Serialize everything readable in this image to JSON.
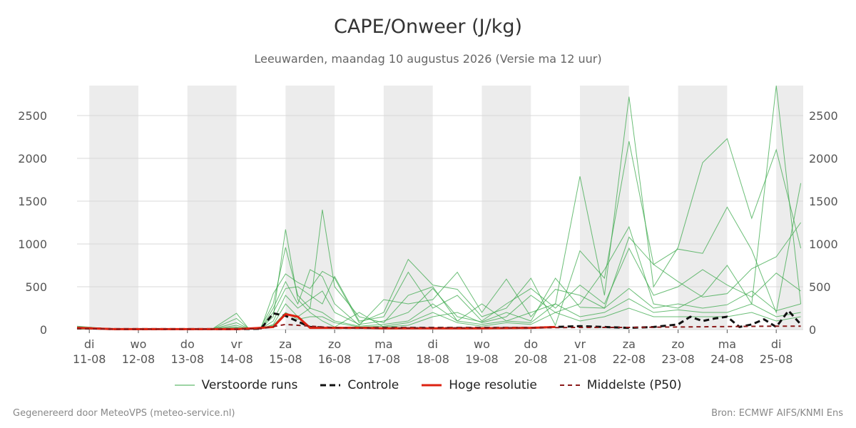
{
  "chart_data": {
    "type": "line",
    "title": "CAPE/Onweer (J/kg)",
    "subtitle": "Leeuwarden, maandag 10 augustus 2026 (Versie ma 12 uur)",
    "ylim": [
      0,
      2850
    ],
    "yticks": [
      0,
      500,
      1000,
      1500,
      2000,
      2500
    ],
    "xlim": [
      -0.25,
      14.55
    ],
    "x_ticks": [
      {
        "x": 0,
        "day": "di",
        "date": "11-08"
      },
      {
        "x": 1,
        "day": "wo",
        "date": "12-08"
      },
      {
        "x": 2,
        "day": "do",
        "date": "13-08"
      },
      {
        "x": 3,
        "day": "vr",
        "date": "14-08"
      },
      {
        "x": 4,
        "day": "za",
        "date": "15-08"
      },
      {
        "x": 5,
        "day": "zo",
        "date": "16-08"
      },
      {
        "x": 6,
        "day": "ma",
        "date": "17-08"
      },
      {
        "x": 7,
        "day": "di",
        "date": "18-08"
      },
      {
        "x": 8,
        "day": "wo",
        "date": "19-08"
      },
      {
        "x": 9,
        "day": "do",
        "date": "20-08"
      },
      {
        "x": 10,
        "day": "vr",
        "date": "21-08"
      },
      {
        "x": 11,
        "day": "za",
        "date": "22-08"
      },
      {
        "x": 12,
        "day": "zo",
        "date": "23-08"
      },
      {
        "x": 13,
        "day": "ma",
        "date": "24-08"
      },
      {
        "x": 14,
        "day": "di",
        "date": "25-08"
      }
    ],
    "weekend_bands": [
      [
        0,
        1
      ],
      [
        2,
        3
      ],
      [
        4,
        5
      ],
      [
        6,
        7
      ],
      [
        8,
        9
      ],
      [
        10,
        11
      ],
      [
        12,
        13
      ],
      [
        14,
        14.55
      ]
    ],
    "grid": true,
    "legend_position": "bottom",
    "series": [
      {
        "name": "Verstoorde runs",
        "style": "thin-green",
        "color": "#3aa84a",
        "members": [
          {
            "x": [
              -0.25,
              0.5,
              1.5,
              2.5,
              3.0,
              3.25,
              3.5,
              3.75,
              4.0,
              4.25,
              4.5,
              4.75,
              5.0,
              5.5,
              6.0,
              6.5,
              7.0,
              7.5,
              8.0,
              8.5,
              9.0,
              9.5,
              10.0,
              10.5,
              11.0,
              11.5,
              12.0,
              12.5,
              13.0,
              13.5,
              14.0,
              14.5
            ],
            "y": [
              30,
              5,
              5,
              5,
              5,
              10,
              20,
              150,
              1170,
              350,
              200,
              100,
              30,
              200,
              30,
              50,
              150,
              200,
              80,
              150,
              400,
              200,
              300,
              700,
              1200,
              300,
              250,
              400,
              750,
              300,
              2850,
              300
            ]
          },
          {
            "x": [
              -0.25,
              0.5,
              1.5,
              2.5,
              3.0,
              3.25,
              3.5,
              3.75,
              4.0,
              4.25,
              4.5,
              4.75,
              5.0,
              5.5,
              6.0,
              6.5,
              7.0,
              7.5,
              8.0,
              8.5,
              9.0,
              9.5,
              10.0,
              10.5,
              11.0,
              11.5,
              12.0,
              12.5,
              13.0,
              13.5,
              14.0,
              14.5
            ],
            "y": [
              40,
              5,
              5,
              5,
              5,
              10,
              30,
              300,
              960,
              400,
              250,
              1400,
              500,
              150,
              80,
              400,
              500,
              100,
              300,
              100,
              200,
              300,
              1790,
              400,
              2720,
              500,
              960,
              1950,
              2230,
              1300,
              2100,
              950
            ]
          },
          {
            "x": [
              -0.25,
              0.5,
              1.5,
              2.5,
              3.0,
              3.25,
              3.5,
              3.75,
              4.0,
              4.25,
              4.5,
              4.75,
              5.0,
              5.5,
              6.0,
              6.5,
              7.0,
              7.5,
              8.0,
              8.5,
              9.0,
              9.5,
              10.0,
              10.5,
              11.0,
              11.5,
              12.0,
              12.5,
              13.0,
              13.5,
              14.0,
              14.5
            ],
            "y": [
              25,
              5,
              5,
              5,
              190,
              10,
              15,
              420,
              650,
              550,
              480,
              680,
              600,
              80,
              200,
              820,
              520,
              470,
              150,
              250,
              600,
              50,
              920,
              600,
              2200,
              760,
              940,
              890,
              1430,
              930,
              200,
              1710
            ]
          },
          {
            "x": [
              -0.25,
              0.5,
              1.5,
              2.5,
              3.0,
              3.25,
              3.5,
              3.75,
              4.0,
              4.25,
              4.5,
              4.75,
              5.0,
              5.5,
              6.0,
              6.5,
              7.0,
              7.5,
              8.0,
              8.5,
              9.0,
              9.5,
              10.0,
              10.5,
              11.0,
              11.5,
              12.0,
              12.5,
              13.0,
              13.5,
              14.0,
              14.5
            ],
            "y": [
              20,
              5,
              5,
              5,
              130,
              10,
              10,
              250,
              560,
              300,
              700,
              620,
              300,
              50,
              350,
              300,
              350,
              670,
              200,
              590,
              150,
              470,
              400,
              250,
              1080,
              760,
              560,
              380,
              420,
              710,
              850,
              1250
            ]
          },
          {
            "x": [
              -0.25,
              0.5,
              1.5,
              2.5,
              3.0,
              3.25,
              3.5,
              3.75,
              4.0,
              4.25,
              4.5,
              4.75,
              5.0,
              5.5,
              6.0,
              6.5,
              7.0,
              7.5,
              8.0,
              8.5,
              9.0,
              9.5,
              10.0,
              10.5,
              11.0,
              11.5,
              12.0,
              12.5,
              13.0,
              13.5,
              14.0,
              14.5
            ],
            "y": [
              15,
              5,
              5,
              5,
              80,
              10,
              10,
              200,
              480,
              500,
              400,
              300,
              620,
              100,
              150,
              670,
              250,
              400,
              100,
              300,
              480,
              250,
              520,
              300,
              950,
              400,
              500,
              700,
              520,
              380,
              660,
              450
            ]
          },
          {
            "x": [
              -0.25,
              0.5,
              1.5,
              2.5,
              3.0,
              3.25,
              3.5,
              3.75,
              4.0,
              4.25,
              4.5,
              4.75,
              5.0,
              5.5,
              6.0,
              6.5,
              7.0,
              7.5,
              8.0,
              8.5,
              9.0,
              9.5,
              10.0,
              10.5,
              11.0,
              11.5,
              12.0,
              12.5,
              13.0,
              13.5,
              14.0,
              14.5
            ],
            "y": [
              10,
              5,
              5,
              5,
              50,
              10,
              10,
              100,
              400,
              250,
              350,
              450,
              200,
              60,
              100,
              200,
              480,
              150,
              90,
              200,
              100,
              600,
              260,
              250,
              480,
              250,
              300,
              250,
              290,
              450,
              220,
              300
            ]
          },
          {
            "x": [
              -0.25,
              0.5,
              1.5,
              2.5,
              3.0,
              3.25,
              3.5,
              3.75,
              4.0,
              4.25,
              4.5,
              4.75,
              5.0,
              5.5,
              6.0,
              6.5,
              7.0,
              7.5,
              8.0,
              8.5,
              9.0,
              9.5,
              10.0,
              10.5,
              11.0,
              11.5,
              12.0,
              12.5,
              13.0,
              13.5,
              14.0,
              14.5
            ],
            "y": [
              10,
              5,
              5,
              5,
              30,
              10,
              10,
              60,
              300,
              150,
              250,
              200,
              100,
              40,
              60,
              100,
              300,
              100,
              60,
              100,
              80,
              300,
              150,
              200,
              360,
              200,
              230,
              200,
              200,
              300,
              150,
              200
            ]
          },
          {
            "x": [
              -0.25,
              0.5,
              1.5,
              2.5,
              3.0,
              3.25,
              3.5,
              3.75,
              4.0,
              4.25,
              4.5,
              4.75,
              5.0,
              5.5,
              6.0,
              6.5,
              7.0,
              7.5,
              8.0,
              8.5,
              9.0,
              9.5,
              10.0,
              10.5,
              11.0,
              11.5,
              12.0,
              12.5,
              13.0,
              13.5,
              14.0,
              14.5
            ],
            "y": [
              5,
              5,
              5,
              5,
              20,
              5,
              10,
              50,
              200,
              120,
              150,
              150,
              80,
              30,
              40,
              80,
              200,
              80,
              40,
              80,
              60,
              200,
              100,
              150,
              250,
              150,
              150,
              150,
              150,
              200,
              100,
              150
            ]
          }
        ]
      },
      {
        "name": "Controle",
        "style": "black-dashed",
        "color": "#111111",
        "x": [
          -0.25,
          0.5,
          1.5,
          2.5,
          3.0,
          3.5,
          3.75,
          4.0,
          4.5,
          5.0,
          5.5,
          6.0,
          7.0,
          8.0,
          9.0,
          9.5,
          10.0,
          10.5,
          11.0,
          11.5,
          12.0,
          12.25,
          12.5,
          12.75,
          13.0,
          13.25,
          13.5,
          13.75,
          14.0,
          14.25,
          14.5
        ],
        "y": [
          20,
          5,
          5,
          5,
          5,
          10,
          190,
          160,
          30,
          20,
          20,
          20,
          20,
          20,
          20,
          30,
          40,
          30,
          20,
          30,
          60,
          150,
          100,
          130,
          150,
          30,
          60,
          120,
          30,
          220,
          60
        ]
      },
      {
        "name": "Hoge resolutie",
        "style": "red-solid",
        "color": "#dd2211",
        "x": [
          -0.25,
          0.5,
          1.5,
          2.5,
          3.0,
          3.5,
          3.75,
          4.0,
          4.25,
          4.5,
          5.0,
          5.5,
          6.0,
          7.0,
          8.0,
          9.0,
          9.5
        ],
        "y": [
          20,
          5,
          5,
          5,
          5,
          20,
          30,
          180,
          150,
          20,
          20,
          20,
          15,
          15,
          15,
          20,
          30
        ]
      },
      {
        "name": "Middelste (P50)",
        "style": "darkred-dashed",
        "color": "#8b1a1a",
        "x": [
          -0.25,
          0.5,
          1.5,
          2.5,
          3.0,
          3.5,
          4.0,
          4.5,
          5.0,
          6.0,
          7.0,
          8.0,
          9.0,
          10.0,
          11.0,
          12.0,
          13.0,
          14.0,
          14.5
        ],
        "y": [
          10,
          5,
          5,
          5,
          5,
          10,
          60,
          40,
          20,
          15,
          20,
          20,
          20,
          25,
          25,
          30,
          35,
          40,
          40
        ]
      }
    ]
  },
  "legend": {
    "items": [
      {
        "label": "Verstoorde runs"
      },
      {
        "label": "Controle"
      },
      {
        "label": "Hoge resolutie"
      },
      {
        "label": "Middelste (P50)"
      }
    ]
  },
  "footer": {
    "left": "Gegenereerd door MeteoVPS (meteo-service.nl)",
    "right": "Bron: ECMWF AIFS/KNMI Ens"
  }
}
